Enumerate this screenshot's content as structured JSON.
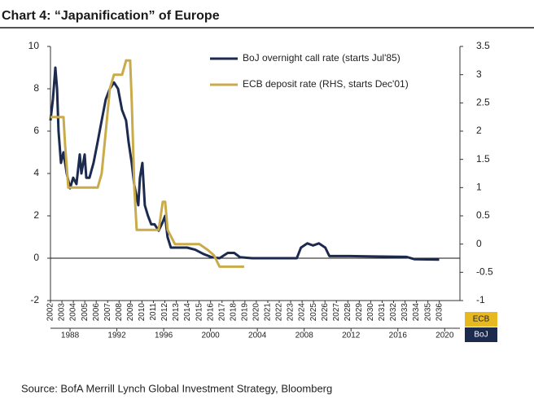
{
  "chart_data": {
    "type": "line",
    "title": "Chart 4: “Japanification” of Europe",
    "source": "Source:  BofA Merrill Lynch Global Investment Strategy, Bloomberg",
    "xlabel": "ECB",
    "x2label": "BoJ",
    "xlim": [
      2002,
      2037.8
    ],
    "xticks": [
      2002,
      2003,
      2004,
      2005,
      2006,
      2007,
      2008,
      2009,
      2010,
      2011,
      2012,
      2013,
      2014,
      2015,
      2016,
      2017,
      2018,
      2019,
      2020,
      2021,
      2022,
      2023,
      2024,
      2025,
      2026,
      2027,
      2028,
      2029,
      2030,
      2031,
      2032,
      2033,
      2034,
      2035,
      2036
    ],
    "x2lim": [
      1986.33,
      2021.3
    ],
    "x2ticks": [
      1988,
      1992,
      1996,
      2000,
      2004,
      2008,
      2012,
      2016,
      2020
    ],
    "ylim": [
      -2,
      10
    ],
    "yticks": [
      -2,
      0,
      2,
      4,
      6,
      8,
      10
    ],
    "y2lim": [
      -1,
      3.5
    ],
    "y2ticks": [
      -1,
      -0.5,
      0,
      0.5,
      1,
      1.5,
      2,
      2.5,
      3,
      3.5
    ],
    "legend": "top-right",
    "series": [
      {
        "name": "BoJ overnight call rate (starts Jul'85)",
        "color": "#1c2a4f",
        "axis": "y",
        "xaxis": "x2",
        "x": [
          1986.33,
          1986.54,
          1986.75,
          1986.89,
          1987.02,
          1987.23,
          1987.44,
          1987.72,
          1988.0,
          1988.27,
          1988.55,
          1988.83,
          1988.97,
          1989.25,
          1989.39,
          1989.66,
          1990.01,
          1990.36,
          1990.7,
          1991.05,
          1991.4,
          1991.75,
          1992.1,
          1992.44,
          1992.79,
          1993.0,
          1993.27,
          1993.48,
          1993.83,
          1993.97,
          1994.18,
          1994.39,
          1994.66,
          1994.94,
          1995.22,
          1995.57,
          1995.91,
          1996.12,
          1996.33,
          1996.61,
          1997.3,
          1998.0,
          1998.69,
          1999.39,
          2000.08,
          2000.77,
          2001.47,
          2002.02,
          2002.51,
          2003.55,
          2004.94,
          2007.37,
          2007.72,
          2008.27,
          2008.76,
          2009.25,
          2009.8,
          2010.15,
          2011.89,
          2013.97,
          2016.75,
          2017.44,
          2019.53
        ],
        "values": [
          6.5,
          7.5,
          9.0,
          8.0,
          6.0,
          4.5,
          5.0,
          4.0,
          3.3,
          3.8,
          3.5,
          4.9,
          4.0,
          4.9,
          3.8,
          3.8,
          4.5,
          5.5,
          6.5,
          7.5,
          8.0,
          8.3,
          8.0,
          7.0,
          6.5,
          5.5,
          4.5,
          3.5,
          2.5,
          3.8,
          4.5,
          2.5,
          2.0,
          1.6,
          1.6,
          1.3,
          1.7,
          2.0,
          1.0,
          0.5,
          0.5,
          0.5,
          0.4,
          0.2,
          0.05,
          0.0,
          0.25,
          0.25,
          0.05,
          0.0,
          0.0,
          0.0,
          0.5,
          0.7,
          0.6,
          0.7,
          0.5,
          0.1,
          0.1,
          0.08,
          0.06,
          -0.05,
          -0.07
        ]
      },
      {
        "name": "ECB deposit rate (RHS, starts Dec'01)",
        "color": "#c9ab4b",
        "axis": "y2",
        "xaxis": "x",
        "x": [
          2002,
          2003.14,
          2003.28,
          2003.56,
          2004.35,
          2006.13,
          2006.48,
          2006.84,
          2007.19,
          2007.55,
          2008.26,
          2008.61,
          2008.97,
          2009.11,
          2009.33,
          2009.54,
          2011.46,
          2011.82,
          2012.03,
          2012.24,
          2012.88,
          2015.02,
          2015.73,
          2016.3,
          2016.79,
          2018.93
        ],
        "values": [
          2.25,
          2.25,
          1.75,
          1.0,
          1.0,
          1.0,
          1.25,
          2.0,
          2.75,
          3.0,
          3.0,
          3.25,
          3.25,
          2.5,
          1.0,
          0.25,
          0.25,
          0.75,
          0.75,
          0.25,
          0.0,
          0.0,
          -0.1,
          -0.2,
          -0.4,
          -0.4
        ]
      }
    ]
  }
}
